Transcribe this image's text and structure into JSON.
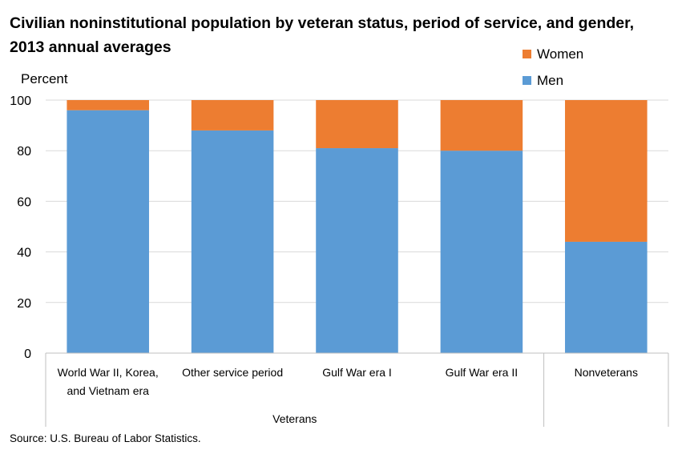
{
  "chart_data": {
    "type": "bar",
    "stacked": true,
    "title": "Civilian noninstitutional population by veteran status, period of service, and gender, 2013 annual averages",
    "ylabel": "Percent",
    "ylim": [
      0,
      100
    ],
    "yticks": [
      0,
      20,
      40,
      60,
      80,
      100
    ],
    "grid": true,
    "legend_position": "top-right",
    "categories": [
      [
        "World War II, Korea,",
        "and Vietnam era"
      ],
      [
        "Other service period"
      ],
      [
        "Gulf War era I"
      ],
      [
        "Gulf War era II"
      ],
      [
        "Nonveterans"
      ]
    ],
    "groups": [
      {
        "label": "Veterans",
        "span": [
          0,
          3
        ]
      },
      {
        "label": "",
        "span": [
          4,
          4
        ]
      }
    ],
    "series": [
      {
        "name": "Men",
        "color": "#5b9bd5",
        "values": [
          96,
          88,
          81,
          80,
          44
        ]
      },
      {
        "name": "Women",
        "color": "#ed7d31",
        "values": [
          4,
          12,
          19,
          20,
          56
        ]
      }
    ],
    "legend_order": [
      "Women",
      "Men"
    ]
  },
  "source": "Source: U.S. Bureau of Labor Statistics."
}
